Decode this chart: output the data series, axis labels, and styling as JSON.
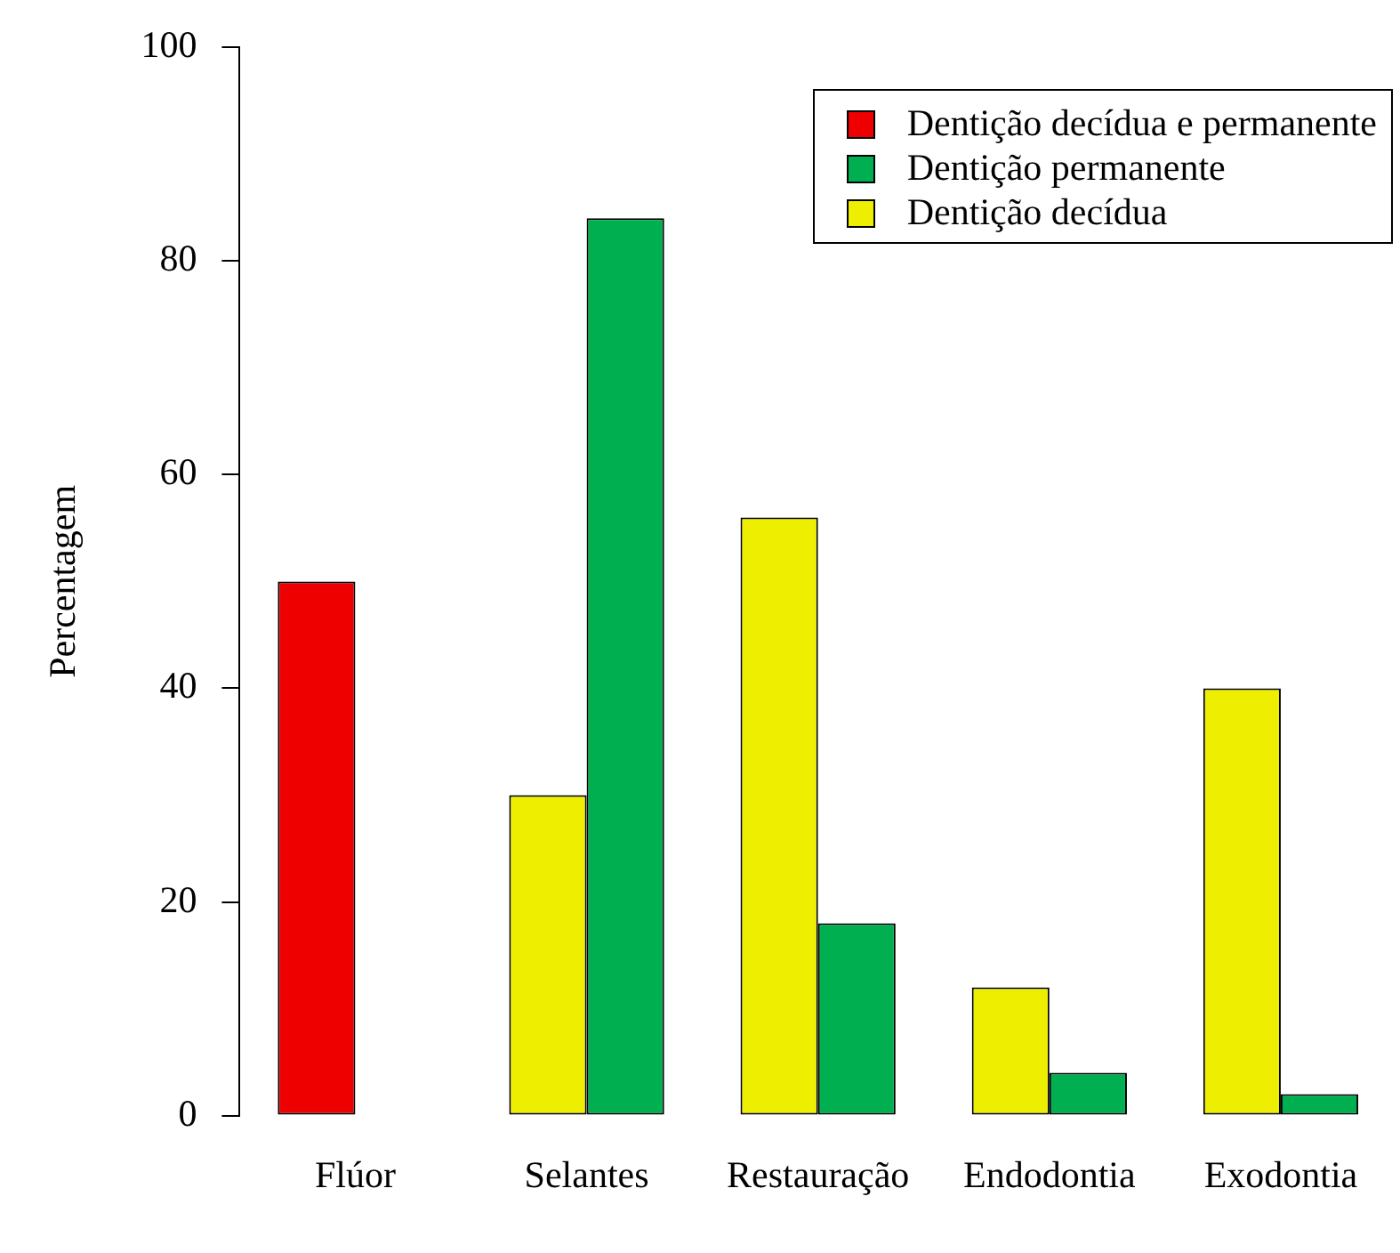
{
  "chart_data": {
    "type": "bar",
    "ylabel": "Percentagem",
    "categories": [
      "Flúor",
      "Selantes",
      "Restauração",
      "Endodontia",
      "Exodontia"
    ],
    "series": [
      {
        "name": "Dentição decídua e permanente",
        "color": "#ee0000",
        "values": [
          50,
          null,
          null,
          null,
          null
        ]
      },
      {
        "name": "Dentição permanente",
        "color": "#00b050",
        "values": [
          0,
          84,
          18,
          4,
          2
        ]
      },
      {
        "name": "Dentição decídua",
        "color": "#eeee00",
        "values": [
          null,
          30,
          56,
          12,
          40
        ]
      }
    ],
    "ylim": [
      0,
      100
    ],
    "yticks": [
      0,
      20,
      40,
      60,
      80,
      100
    ],
    "grid": false,
    "legend": "top right"
  }
}
